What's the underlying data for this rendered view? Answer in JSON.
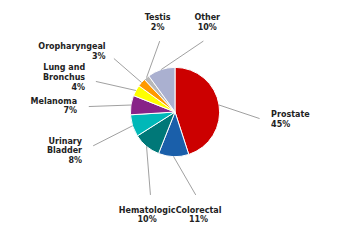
{
  "chart_data": {
    "type": "pie",
    "categories": [
      "Prostate",
      "Colorectal",
      "Hematologic",
      "Urinary\nBladder",
      "Melanoma",
      "Lung and\nBronchus",
      "Oropharyngeal",
      "Testis",
      "Other"
    ],
    "values": [
      45,
      11,
      10,
      8,
      7,
      4,
      3,
      2,
      10
    ],
    "value_labels": [
      "45%",
      "11%",
      "10%",
      "8%",
      "7%",
      "4%",
      "3%",
      "2%",
      "10%"
    ],
    "colors": [
      "#cc0000",
      "#1a5faa",
      "#007878",
      "#00b8b8",
      "#882288",
      "#ffff00",
      "#ff9900",
      "#b8b8b8",
      "#aab0d0"
    ],
    "data_labels": true
  }
}
